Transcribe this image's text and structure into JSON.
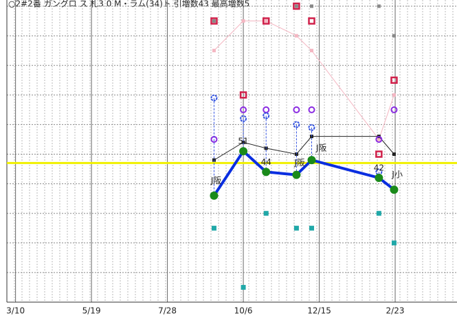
{
  "chart_data": {
    "type": "line",
    "title": "○2#2番 ガングロ ス 札3 0 M・ラム(34)ト 引増数43 最高増数5",
    "x": [
      183,
      210,
      231,
      259,
      273,
      335,
      349
    ],
    "xlim": [
      -8,
      407
    ],
    "xticks": [
      {
        "value": 0,
        "label": "3/10"
      },
      {
        "value": 70,
        "label": "5/19"
      },
      {
        "value": 140,
        "label": "7/28"
      },
      {
        "value": 210,
        "label": "10/6"
      },
      {
        "value": 280,
        "label": "12/15"
      },
      {
        "value": 350,
        "label": "2/23"
      }
    ],
    "ylim": [
      0,
      100
    ],
    "yticks": [
      0,
      10,
      20,
      30,
      40,
      50,
      60,
      70,
      80,
      90,
      100
    ],
    "grid": true,
    "reference_line": {
      "value": 47,
      "color": "#f0f000"
    },
    "series": [
      {
        "color": "#f4b6c2",
        "line": true,
        "marker": "dot",
        "values": [
          85,
          95,
          95,
          90,
          85,
          55,
          70
        ]
      },
      {
        "color": "#222222",
        "line": true,
        "marker": "dot",
        "values": [
          48,
          54,
          52,
          50,
          56,
          56,
          50
        ]
      },
      {
        "color": "#d0204a",
        "line": false,
        "marker": "square",
        "values": [
          95,
          70,
          95,
          100,
          95,
          50,
          75
        ]
      },
      {
        "color": "#888888",
        "line": false,
        "marker": "dot",
        "values": [
          95,
          null,
          null,
          100,
          100,
          100,
          90
        ]
      },
      {
        "color": "#8a2be2",
        "line": false,
        "marker": "ring",
        "values": [
          55,
          65,
          65,
          65,
          65,
          55,
          65
        ]
      },
      {
        "color": "#3050e0",
        "line": false,
        "marker": "ring",
        "drop_to_series": 7,
        "values": [
          69,
          62,
          63,
          60,
          59,
          44,
          null
        ]
      },
      {
        "color": "#20a8a8",
        "line": false,
        "marker": "block",
        "values": [
          25,
          5,
          30,
          25,
          25,
          30,
          20
        ]
      },
      {
        "color": "#0a2ee0",
        "marker_color": "#1a8a1a",
        "line": true,
        "line_width": 4,
        "marker": "circle",
        "values": [
          36,
          51,
          44,
          43,
          48,
          42,
          38
        ],
        "labeled_points": [
          1,
          2,
          5
        ]
      }
    ],
    "annotations": [
      {
        "text": "J阪",
        "x": 185,
        "y": 41
      },
      {
        "text": "J阪",
        "x": 262,
        "y": 47
      },
      {
        "text": "J阪",
        "x": 282,
        "y": 52
      },
      {
        "text": "J小",
        "x": 352,
        "y": 43
      }
    ]
  }
}
